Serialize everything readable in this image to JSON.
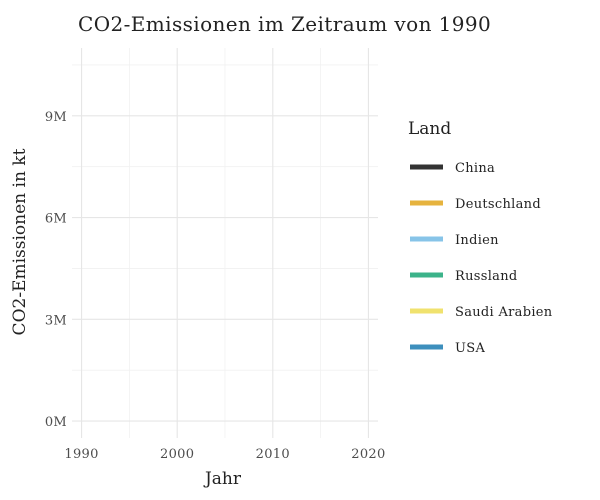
{
  "chart_data": {
    "type": "line",
    "title": "CO2-Emissionen im Zeitraum von 1990",
    "xlabel": "Jahr",
    "ylabel": "CO2-Emissionen in kt",
    "xlim": [
      1989,
      2021
    ],
    "ylim": [
      -500000,
      11000000
    ],
    "x_ticks": [
      1990,
      2000,
      2010,
      2020
    ],
    "x_minor_ticks": [
      1995,
      2005,
      2015
    ],
    "y_ticks": [
      0,
      3000000,
      6000000,
      9000000
    ],
    "y_tick_labels": [
      "0M",
      "3M",
      "6M",
      "9M"
    ],
    "y_minor_ticks": [
      1500000,
      4500000,
      7500000,
      10500000
    ],
    "grid": true,
    "legend_title": "Land",
    "legend_position": "right",
    "series": [
      {
        "name": "China",
        "color": "#333333",
        "values": []
      },
      {
        "name": "Deutschland",
        "color": "#E6B33E",
        "values": []
      },
      {
        "name": "Indien",
        "color": "#87C4E8",
        "values": []
      },
      {
        "name": "Russland",
        "color": "#3CB38A",
        "values": []
      },
      {
        "name": "Saudi Arabien",
        "color": "#F0E26E",
        "values": []
      },
      {
        "name": "USA",
        "color": "#3D8FBD",
        "values": []
      }
    ]
  }
}
